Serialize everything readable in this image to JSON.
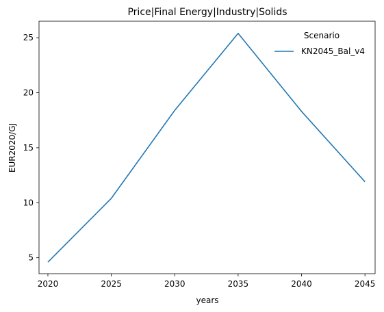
{
  "chart_data": {
    "type": "line",
    "title": "Price|Final Energy|Industry|Solids",
    "xlabel": "years",
    "ylabel": "EUR2020/GJ",
    "x": [
      2020,
      2025,
      2030,
      2035,
      2040,
      2045
    ],
    "series": [
      {
        "name": "KN2045_Bal_v4",
        "color": "#1f77b4",
        "values": [
          4.6,
          10.4,
          18.4,
          25.4,
          18.3,
          11.9
        ]
      }
    ],
    "xlim": [
      2019.3,
      2045.8
    ],
    "ylim": [
      3.55,
      26.5
    ],
    "xticks": [
      2020,
      2025,
      2030,
      2035,
      2040,
      2045
    ],
    "yticks": [
      5,
      10,
      15,
      20,
      25
    ],
    "legend": {
      "title": "Scenario",
      "placement": "top-right"
    },
    "grid": false
  }
}
